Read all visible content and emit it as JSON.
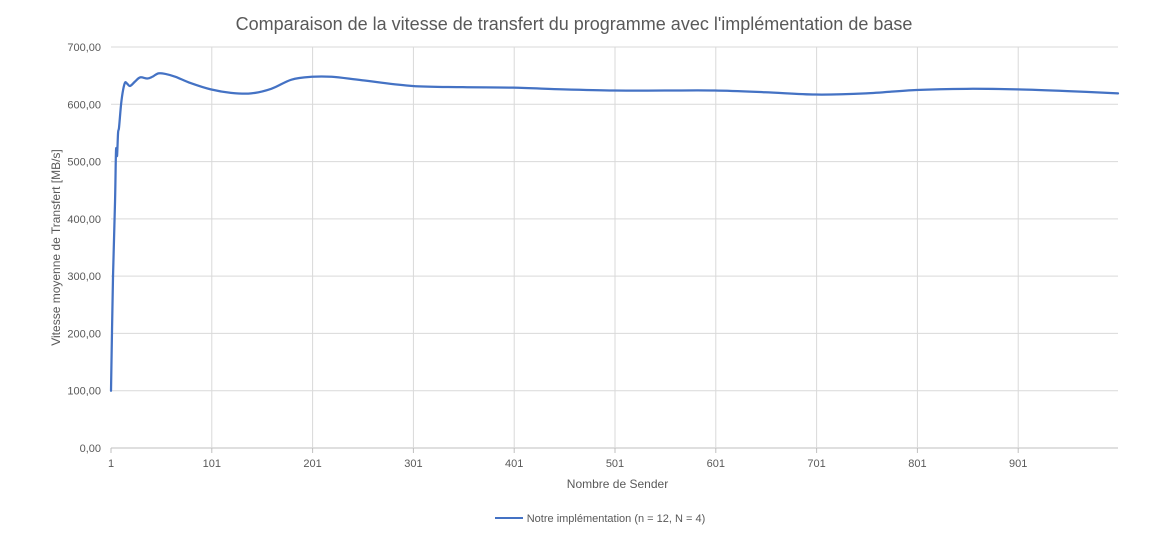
{
  "chart_data": {
    "type": "line",
    "title": "Comparaison de la vitesse de transfert du programme avec l'implémentation de base",
    "xlabel": "Nombre de Sender",
    "ylabel": "Vitesse moyenne de Transfert [MB/s]",
    "xlim": [
      1,
      1000
    ],
    "ylim": [
      0,
      700
    ],
    "x_ticks": [
      1,
      101,
      201,
      301,
      401,
      501,
      601,
      701,
      801,
      901
    ],
    "x_tick_labels": [
      "1",
      "101",
      "201",
      "301",
      "401",
      "501",
      "601",
      "701",
      "801",
      "901"
    ],
    "y_ticks": [
      0,
      100,
      200,
      300,
      400,
      500,
      600,
      700
    ],
    "y_tick_labels": [
      "0,00",
      "100,00",
      "200,00",
      "300,00",
      "400,00",
      "500,00",
      "600,00",
      "700,00"
    ],
    "grid": true,
    "legend_position": "bottom",
    "series": [
      {
        "name": "Notre implémentation (n = 12, N = 4)",
        "color": "#4472c4",
        "points": [
          [
            1,
            100
          ],
          [
            3,
            300
          ],
          [
            5,
            430
          ],
          [
            6,
            520
          ],
          [
            7,
            510
          ],
          [
            8,
            550
          ],
          [
            9,
            560
          ],
          [
            11,
            600
          ],
          [
            13,
            625
          ],
          [
            15,
            638
          ],
          [
            17,
            636
          ],
          [
            20,
            632
          ],
          [
            25,
            640
          ],
          [
            30,
            647
          ],
          [
            37,
            645
          ],
          [
            42,
            648
          ],
          [
            48,
            654
          ],
          [
            55,
            653
          ],
          [
            65,
            648
          ],
          [
            80,
            637
          ],
          [
            100,
            626
          ],
          [
            120,
            620
          ],
          [
            140,
            619
          ],
          [
            160,
            627
          ],
          [
            180,
            643
          ],
          [
            200,
            648
          ],
          [
            220,
            648
          ],
          [
            250,
            642
          ],
          [
            300,
            632
          ],
          [
            350,
            630
          ],
          [
            400,
            629
          ],
          [
            450,
            626
          ],
          [
            500,
            624
          ],
          [
            550,
            624
          ],
          [
            600,
            624
          ],
          [
            650,
            621
          ],
          [
            700,
            617
          ],
          [
            750,
            619
          ],
          [
            800,
            625
          ],
          [
            850,
            627
          ],
          [
            900,
            626
          ],
          [
            950,
            623
          ],
          [
            1000,
            619
          ]
        ]
      }
    ]
  }
}
